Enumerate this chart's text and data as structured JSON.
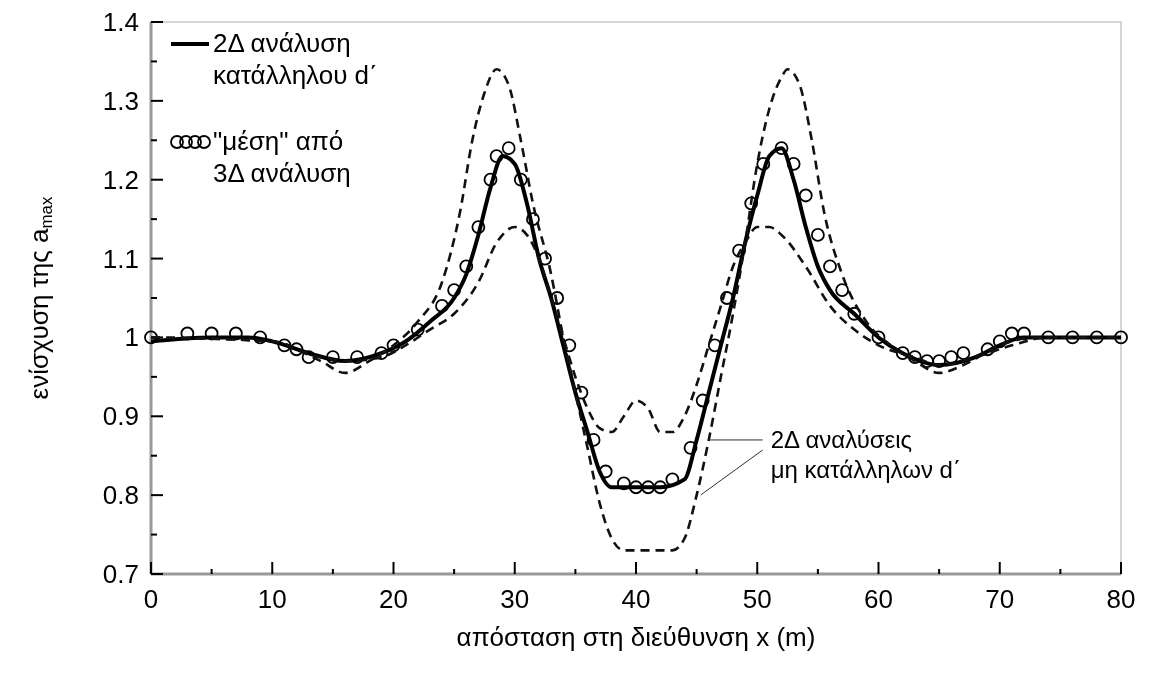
{
  "chart_data": {
    "type": "line",
    "xlabel": "απόσταση στη διεύθυνση  x (m)",
    "ylabel": "ενίσχυση της a$_{max}$",
    "xlim": [
      0,
      80
    ],
    "xticks": [
      0,
      10,
      20,
      30,
      40,
      50,
      60,
      70,
      80
    ],
    "ylim": [
      0.7,
      1.4
    ],
    "yticks": [
      0.7,
      0.8,
      0.9,
      {
        "value": 1,
        "label": "1"
      },
      1.1,
      1.2,
      1.3,
      1.4
    ],
    "grid": false,
    "legend": "top left",
    "annotations": [
      {
        "text": "2Δ αναλύσεις μη κατάλληλων d΄",
        "x": 46,
        "y": 0.87
      }
    ],
    "series": [
      {
        "name": "2Δ ανάλυση κατάλληλου d΄",
        "color": "#000000",
        "line_style": "solid",
        "x": [
          0,
          5,
          8,
          10,
          13,
          16,
          19,
          21,
          23,
          25,
          26,
          27,
          28,
          29,
          30,
          31,
          32,
          33,
          34,
          35,
          36,
          37,
          38,
          40,
          42,
          44,
          45,
          46,
          47,
          48,
          49,
          50,
          51,
          52,
          53,
          54,
          55,
          56,
          58,
          60,
          62,
          65,
          68,
          70,
          72,
          75,
          80
        ],
        "values": [
          0.995,
          1.0,
          1.0,
          0.995,
          0.98,
          0.97,
          0.98,
          0.995,
          1.02,
          1.05,
          1.08,
          1.13,
          1.19,
          1.23,
          1.22,
          1.17,
          1.1,
          1.05,
          0.99,
          0.93,
          0.88,
          0.83,
          0.81,
          0.81,
          0.81,
          0.82,
          0.87,
          0.93,
          0.99,
          1.05,
          1.12,
          1.18,
          1.23,
          1.24,
          1.2,
          1.14,
          1.09,
          1.06,
          1.03,
          1.0,
          0.98,
          0.965,
          0.975,
          0.99,
          1.0,
          1.0,
          1.0
        ]
      },
      {
        "name": "\"μέση\" από 3Δ ανάλυση",
        "type": "scatter",
        "color": "#000000",
        "marker": "circle",
        "x": [
          0,
          3,
          5,
          7,
          9,
          11,
          12,
          13,
          15,
          17,
          19,
          20,
          22,
          24,
          25,
          26,
          27,
          28,
          28.5,
          29.5,
          30.5,
          31.5,
          32.5,
          33.5,
          34.5,
          35.5,
          36.5,
          37.5,
          39,
          40,
          41,
          42,
          43,
          44.5,
          45.5,
          46.5,
          47.5,
          48.5,
          49.5,
          50.5,
          52,
          53,
          54,
          55,
          56,
          57,
          58,
          60,
          62,
          63,
          64,
          65,
          66,
          67,
          69,
          70,
          71,
          72,
          74,
          76,
          78,
          80
        ],
        "values": [
          1.0,
          1.005,
          1.005,
          1.005,
          1.0,
          0.99,
          0.985,
          0.975,
          0.975,
          0.975,
          0.98,
          0.99,
          1.01,
          1.04,
          1.06,
          1.09,
          1.14,
          1.2,
          1.23,
          1.24,
          1.2,
          1.15,
          1.1,
          1.05,
          0.99,
          0.93,
          0.87,
          0.83,
          0.815,
          0.81,
          0.81,
          0.81,
          0.82,
          0.86,
          0.92,
          0.99,
          1.05,
          1.11,
          1.17,
          1.22,
          1.24,
          1.22,
          1.18,
          1.13,
          1.09,
          1.06,
          1.03,
          1.0,
          0.98,
          0.975,
          0.97,
          0.97,
          0.975,
          0.98,
          0.985,
          0.995,
          1.005,
          1.005,
          1.0,
          1.0,
          1.0,
          1.0
        ]
      },
      {
        "color": "#111111",
        "line_style": "dashed",
        "x": [
          0,
          10,
          14,
          16,
          18,
          20,
          22,
          24,
          25.5,
          26.5,
          27.5,
          28.5,
          29.5,
          30.5,
          31.5,
          33,
          34,
          35,
          36,
          37,
          38,
          39,
          41,
          43,
          44,
          45,
          46,
          47,
          48,
          49,
          50,
          51,
          52,
          52.5,
          53.5,
          54.5,
          55.5,
          57,
          59,
          61,
          63,
          65,
          67,
          70,
          73,
          80
        ],
        "values": [
          1.0,
          0.995,
          0.97,
          0.955,
          0.97,
          0.99,
          1.02,
          1.07,
          1.16,
          1.25,
          1.31,
          1.34,
          1.32,
          1.25,
          1.17,
          1.08,
          1.0,
          0.93,
          0.86,
          0.79,
          0.745,
          0.73,
          0.73,
          0.73,
          0.745,
          0.8,
          0.87,
          0.95,
          1.03,
          1.12,
          1.22,
          1.29,
          1.33,
          1.34,
          1.32,
          1.25,
          1.16,
          1.08,
          1.02,
          0.99,
          0.97,
          0.955,
          0.965,
          0.99,
          1.0,
          1.0
        ]
      },
      {
        "color": "#111111",
        "line_style": "dashed",
        "x": [
          0,
          10,
          14,
          16,
          19,
          21,
          23,
          25,
          27,
          28.5,
          30,
          31,
          32,
          33,
          34,
          35,
          36,
          37,
          38,
          39,
          40,
          41,
          42,
          43,
          44,
          45,
          46,
          47,
          48,
          49,
          50,
          51,
          52,
          54,
          56,
          58,
          60,
          63,
          65,
          68,
          71,
          74,
          80
        ],
        "values": [
          1.0,
          0.995,
          0.975,
          0.97,
          0.975,
          0.99,
          1.01,
          1.03,
          1.07,
          1.12,
          1.14,
          1.13,
          1.1,
          1.05,
          1.0,
          0.95,
          0.91,
          0.885,
          0.88,
          0.9,
          0.92,
          0.91,
          0.88,
          0.88,
          0.9,
          0.94,
          0.99,
          1.04,
          1.09,
          1.12,
          1.14,
          1.14,
          1.13,
          1.09,
          1.04,
          1.01,
          0.99,
          0.975,
          0.965,
          0.975,
          0.99,
          1.0,
          1.0
        ]
      }
    ]
  }
}
